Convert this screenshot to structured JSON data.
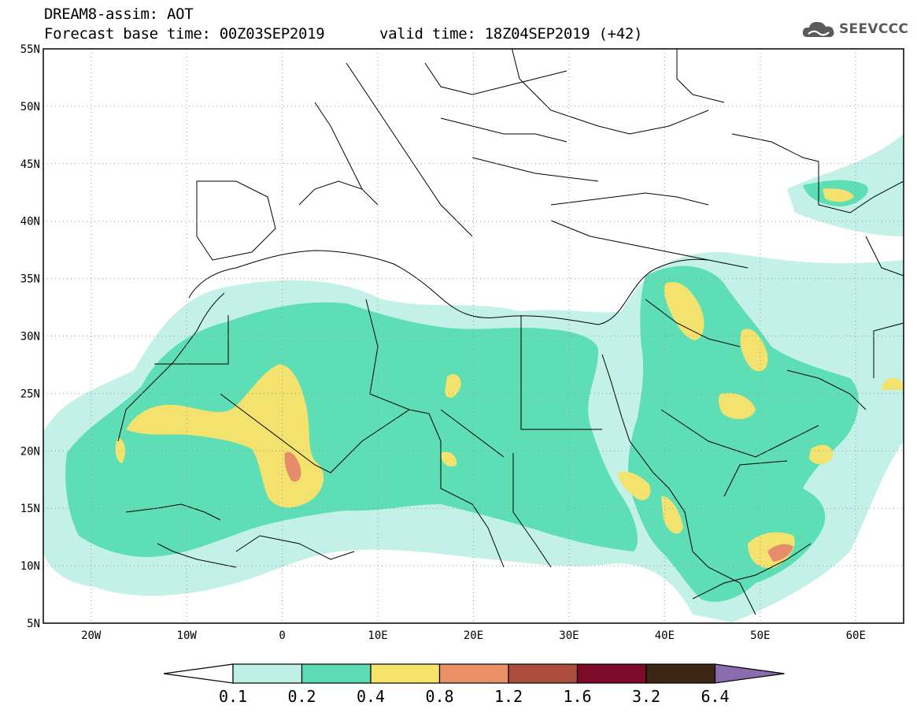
{
  "header": {
    "title_line1": "DREAM8-assim: AOT",
    "title_line2": "Forecast base time: 00Z03SEP2019",
    "valid_time": "valid time: 18Z04SEP2019 (+42)",
    "logo_text": "SEEVCCC",
    "logo_icon": "cloud-icon"
  },
  "map": {
    "lon_range": [
      -25,
      65
    ],
    "lat_range": [
      5,
      55
    ],
    "lat_ticks": [
      "5N",
      "10N",
      "15N",
      "20N",
      "25N",
      "30N",
      "35N",
      "40N",
      "45N",
      "50N",
      "55N"
    ],
    "lon_ticks": [
      "20W",
      "10W",
      "0",
      "10E",
      "20E",
      "30E",
      "40E",
      "50E",
      "60E"
    ],
    "gridlines": true,
    "gridline_style": "dotted"
  },
  "colorbar": {
    "labels": [
      "0.1",
      "0.2",
      "0.4",
      "0.8",
      "1.2",
      "1.6",
      "3.2",
      "6.4"
    ],
    "colors": [
      "#bff0e6",
      "#5ddcb4",
      "#f5e36c",
      "#ea9066",
      "#aa4d3c",
      "#7e0a2a",
      "#3e2614",
      "#8b6cae"
    ],
    "low_color": "#ffffff"
  },
  "colors": {
    "aot_0_1": "#c3f1e8",
    "aot_0_2": "#5edeb5",
    "aot_0_4": "#f3e26e",
    "aot_0_8": "#e68c6b",
    "border": "#000000"
  }
}
